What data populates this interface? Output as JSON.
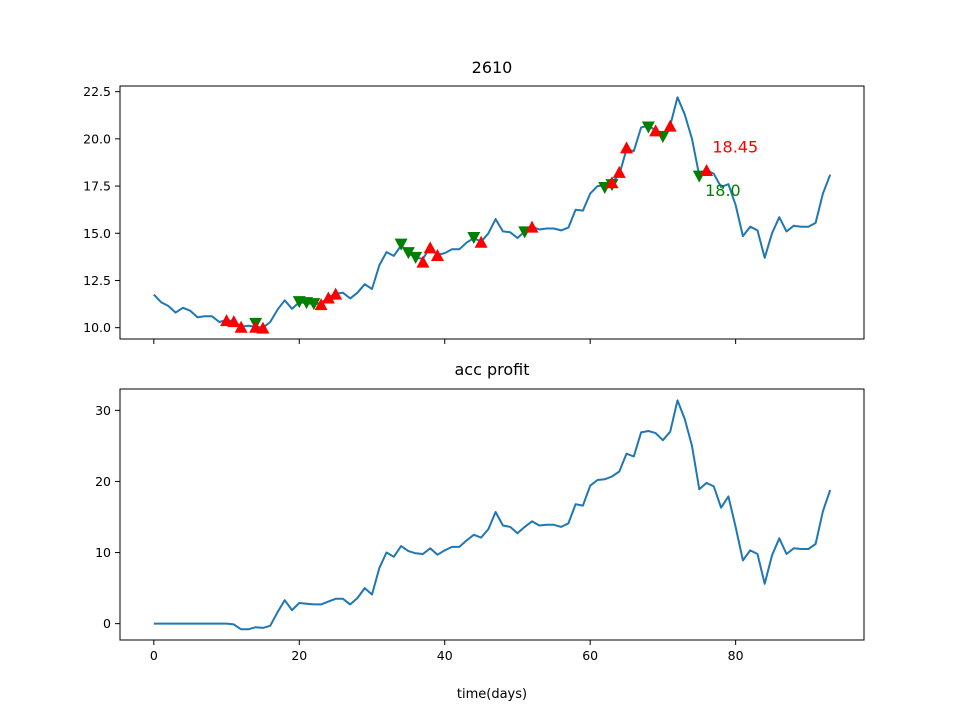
{
  "chart_data": [
    {
      "type": "line",
      "title": "2610",
      "xlabel": "",
      "ylabel": "",
      "xlim": [
        -4.65,
        97.65
      ],
      "ylim": [
        9.4,
        22.8
      ],
      "xticks": [
        0,
        20,
        40,
        60,
        80
      ],
      "show_xtick_labels": false,
      "yticks": [
        "10.0",
        "12.5",
        "15.0",
        "17.5",
        "20.0",
        "22.5"
      ],
      "grid": false,
      "colors": {
        "line": "#1f77b4",
        "buy": "#ff0000",
        "sell": "#008000"
      },
      "series": [
        {
          "x": [
            0,
            1,
            2,
            3,
            4,
            5,
            6,
            7,
            8,
            9,
            10,
            11,
            12,
            13,
            14,
            15,
            16,
            17,
            18,
            19,
            20,
            21,
            22,
            23,
            24,
            25,
            26,
            27,
            28,
            29,
            30,
            31,
            32,
            33,
            34,
            35,
            36,
            37,
            38,
            39,
            40,
            41,
            42,
            43,
            44,
            45,
            46,
            47,
            48,
            49,
            50,
            51,
            52,
            53,
            54,
            55,
            56,
            57,
            58,
            59,
            60,
            61,
            62,
            63,
            64,
            65,
            66,
            67,
            68,
            69,
            70,
            71,
            72,
            73,
            74,
            75,
            76,
            77,
            78,
            79,
            80,
            81,
            82,
            83,
            84,
            85,
            86,
            87,
            88,
            89,
            90,
            91,
            92,
            93
          ],
          "values": [
            11.75,
            11.35,
            11.15,
            10.8,
            11.05,
            10.9,
            10.55,
            10.6,
            10.6,
            10.3,
            10.4,
            10.35,
            10.05,
            10.1,
            10.05,
            10.0,
            10.3,
            10.95,
            11.45,
            11.0,
            11.35,
            11.3,
            11.25,
            11.3,
            11.6,
            11.8,
            11.85,
            11.55,
            11.85,
            12.3,
            12.05,
            13.3,
            14.0,
            13.8,
            14.35,
            13.95,
            13.7,
            13.65,
            14.25,
            13.85,
            13.95,
            14.15,
            14.15,
            14.5,
            14.75,
            14.55,
            15.0,
            15.75,
            15.1,
            15.05,
            14.75,
            15.1,
            15.35,
            15.2,
            15.25,
            15.25,
            15.15,
            15.3,
            16.25,
            16.2,
            17.1,
            17.5,
            17.55,
            17.7,
            18.1,
            19.45,
            19.35,
            20.6,
            20.7,
            20.45,
            20.2,
            20.7,
            22.2,
            21.3,
            20.0,
            18.05,
            18.35,
            18.15,
            17.45,
            17.6,
            16.5,
            14.85,
            15.35,
            15.15,
            13.7,
            15.0,
            15.85,
            15.1,
            15.4,
            15.35,
            15.35,
            15.55,
            17.1,
            18.1
          ]
        }
      ],
      "buy_markers": {
        "x": [
          10,
          11,
          12,
          14,
          15,
          23,
          24,
          25,
          37,
          38,
          39,
          45,
          52,
          63,
          64,
          65,
          69,
          71,
          76
        ],
        "y": [
          10.4,
          10.35,
          10.05,
          10.05,
          10.0,
          11.25,
          11.6,
          11.8,
          13.5,
          14.25,
          13.85,
          14.55,
          15.35,
          17.7,
          18.25,
          19.55,
          20.45,
          20.7,
          18.35
        ]
      },
      "sell_markers": {
        "x": [
          14,
          20,
          21,
          22,
          34,
          35,
          36,
          44,
          51,
          62,
          63,
          68,
          70,
          75
        ],
        "y": [
          10.2,
          11.35,
          11.3,
          11.25,
          14.4,
          13.95,
          13.7,
          14.75,
          15.05,
          17.4,
          17.55,
          20.6,
          20.1,
          18.0
        ]
      },
      "annotations": [
        {
          "text": "18.45",
          "x": 76.8,
          "y": 19.6,
          "color": "#ff0000"
        },
        {
          "text": "18.0",
          "x": 75.8,
          "y": 17.3,
          "color": "#008000"
        }
      ]
    },
    {
      "type": "line",
      "title": "acc profit",
      "xlabel": "time(days)",
      "ylabel": "",
      "xlim": [
        -4.65,
        97.65
      ],
      "ylim": [
        -2.3,
        33.0
      ],
      "xticks": [
        0,
        20,
        40,
        60,
        80
      ],
      "yticks": [
        0,
        10,
        20,
        30
      ],
      "grid": false,
      "series": [
        {
          "x": [
            0,
            1,
            2,
            3,
            4,
            5,
            6,
            7,
            8,
            9,
            10,
            11,
            12,
            13,
            14,
            15,
            16,
            17,
            18,
            19,
            20,
            21,
            22,
            23,
            24,
            25,
            26,
            27,
            28,
            29,
            30,
            31,
            32,
            33,
            34,
            35,
            36,
            37,
            38,
            39,
            40,
            41,
            42,
            43,
            44,
            45,
            46,
            47,
            48,
            49,
            50,
            51,
            52,
            53,
            54,
            55,
            56,
            57,
            58,
            59,
            60,
            61,
            62,
            63,
            64,
            65,
            66,
            67,
            68,
            69,
            70,
            71,
            72,
            73,
            74,
            75,
            76,
            77,
            78,
            79,
            80,
            81,
            82,
            83,
            84,
            85,
            86,
            87,
            88,
            89,
            90,
            91,
            92,
            93
          ],
          "values": [
            0,
            0,
            0,
            0,
            0,
            0,
            0,
            0,
            0,
            0,
            0,
            -0.1,
            -0.8,
            -0.8,
            -0.5,
            -0.6,
            -0.3,
            1.6,
            3.3,
            1.9,
            2.9,
            2.8,
            2.7,
            2.7,
            3.1,
            3.5,
            3.5,
            2.7,
            3.6,
            5.0,
            4.1,
            7.8,
            10.0,
            9.4,
            10.9,
            10.2,
            9.9,
            9.8,
            10.6,
            9.7,
            10.3,
            10.8,
            10.8,
            11.7,
            12.5,
            12.1,
            13.3,
            15.7,
            13.8,
            13.6,
            12.7,
            13.6,
            14.4,
            13.8,
            13.9,
            13.9,
            13.6,
            14.1,
            16.8,
            16.6,
            19.4,
            20.2,
            20.3,
            20.7,
            21.4,
            23.9,
            23.5,
            26.9,
            27.1,
            26.8,
            25.8,
            27.0,
            31.4,
            28.8,
            25.0,
            18.9,
            19.8,
            19.3,
            16.3,
            17.9,
            13.6,
            8.9,
            10.3,
            9.8,
            5.6,
            9.6,
            12.0,
            9.8,
            10.6,
            10.5,
            10.5,
            11.2,
            15.8,
            18.8
          ]
        }
      ]
    }
  ]
}
